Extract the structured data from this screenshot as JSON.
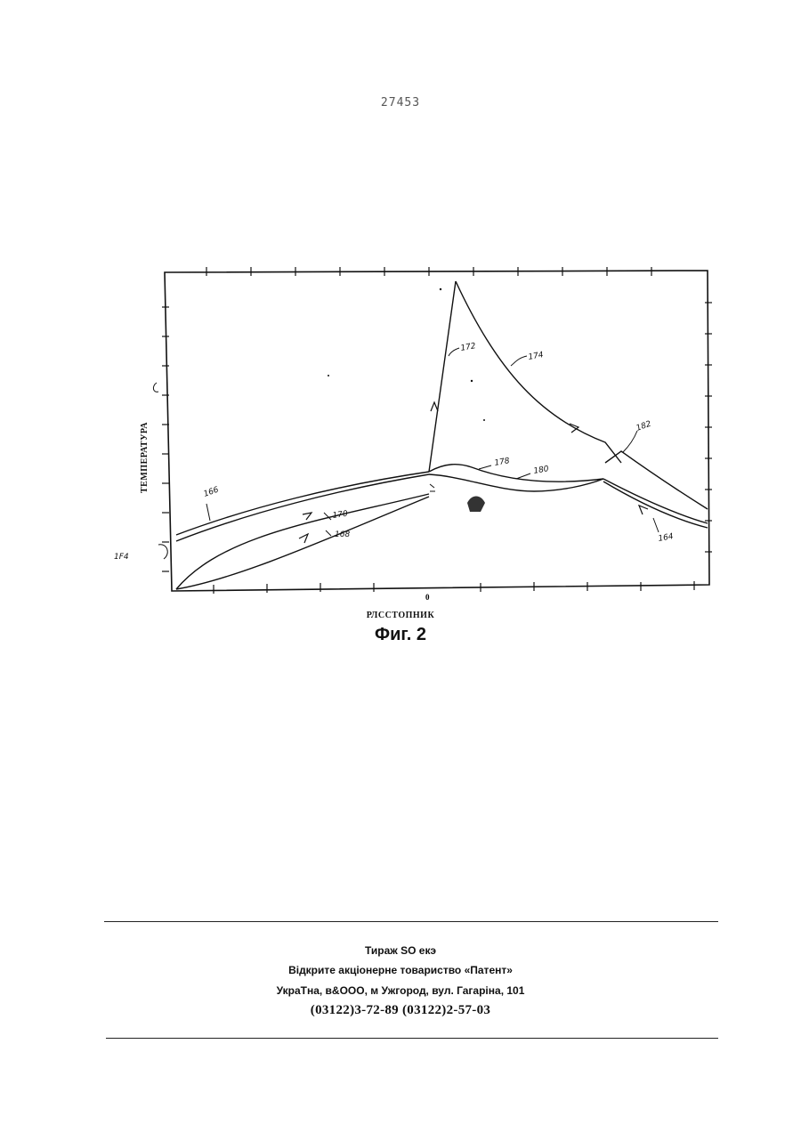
{
  "page_number": "27453",
  "figure": {
    "y_axis_label": "ТЕМПЕРАТУРА",
    "x_axis_label": "РЛССТОПНИК",
    "caption": "Фиг. 2",
    "origin_mark": "0",
    "reference_numerals": [
      "166",
      "164",
      "170",
      "168",
      "172",
      "174",
      "178",
      "180",
      "182",
      "164"
    ]
  },
  "footer": {
    "line1": "Тираж SO екэ",
    "line2": "Відкрите акціонерне товариство «Патент»",
    "line3": "УкраТна, в&ООО, м Ужгород, вул. Гагаріна, 101",
    "line4": "(03122)3-72-89 (03122)2-57-03"
  }
}
